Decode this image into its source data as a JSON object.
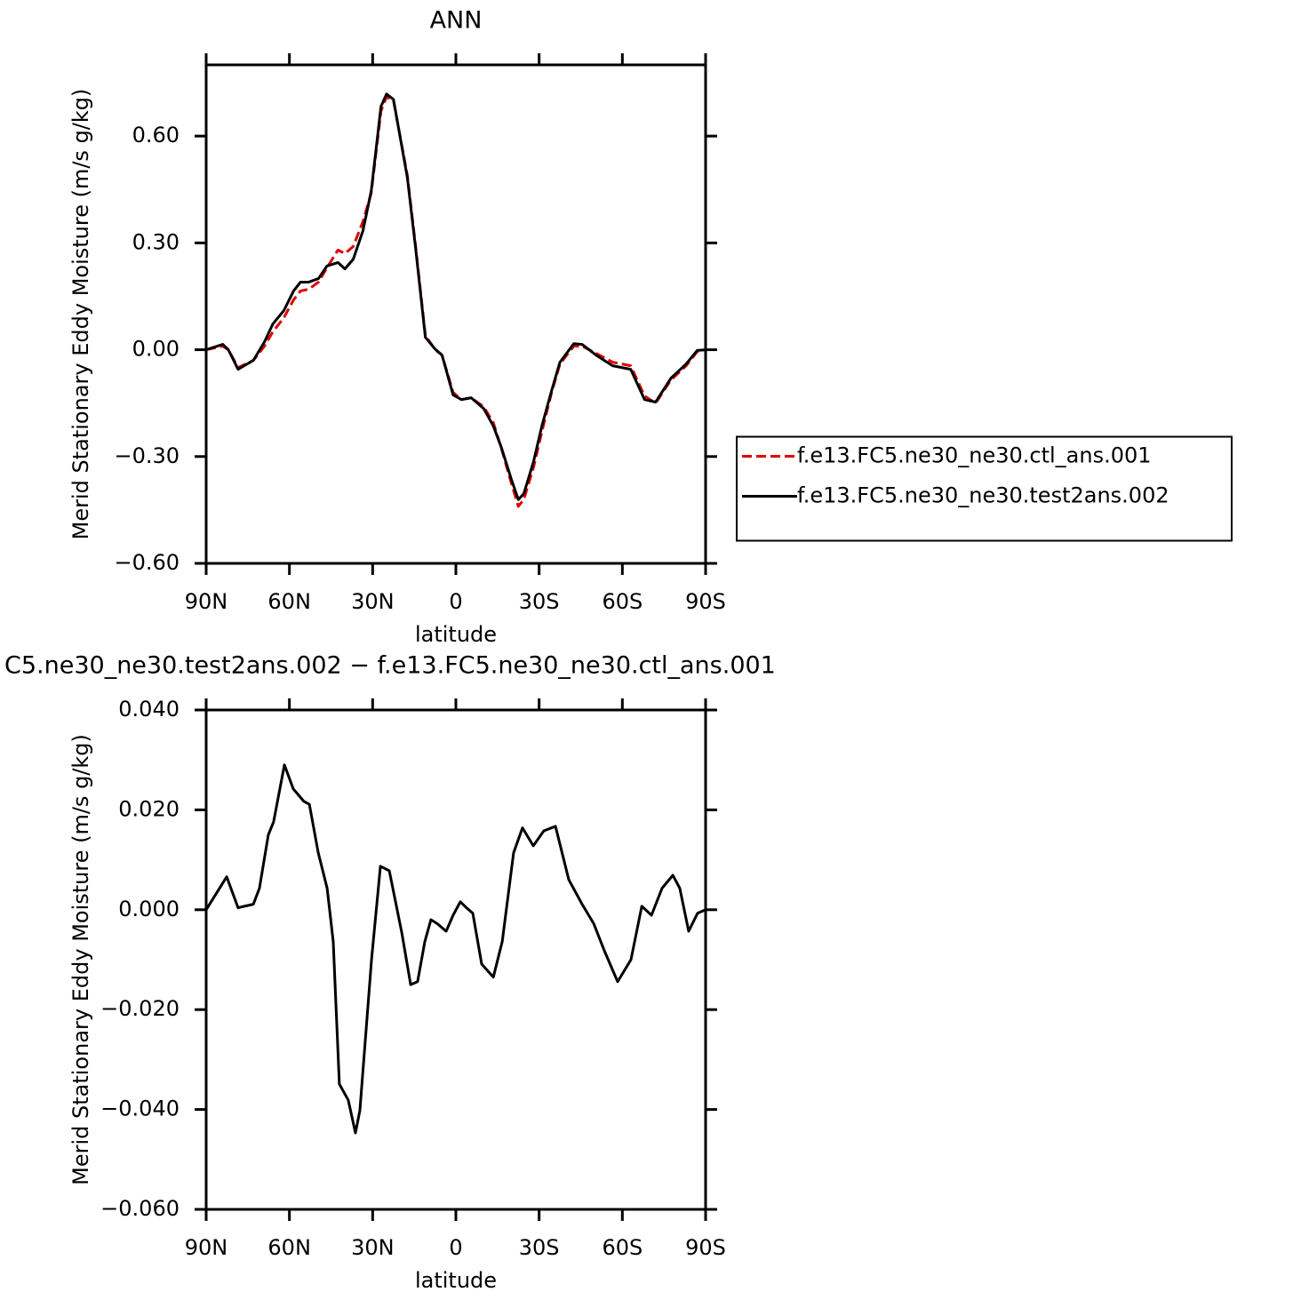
{
  "chart_data": [
    {
      "type": "line",
      "title": "ANN",
      "xlabel": "latitude",
      "ylabel": "Merid Stationary Eddy Moisture (m/s g/kg)",
      "x": [
        90,
        84,
        82,
        78.5,
        73,
        69,
        66,
        62,
        58.5,
        56,
        53,
        49.5,
        46.5,
        42.5,
        40,
        37,
        33.5,
        30.5,
        27,
        25,
        22.5,
        17.5,
        14.5,
        11,
        7.5,
        5,
        1,
        -2,
        -5.5,
        -10,
        -13.5,
        -16.5,
        -20,
        -22.5,
        -24.5,
        -28,
        -31,
        -34.5,
        -37.5,
        -42.5,
        -45.5,
        -50.5,
        -56.5,
        -63,
        -68,
        -72,
        -77.5,
        -83,
        -87,
        -90
      ],
      "series": [
        {
          "name": "f.e13.FC5.ne30_ne30.ctl_ans.001",
          "color": "#e00000",
          "style": "dashed",
          "values": [
            0,
            0.01,
            0,
            -0.05,
            -0.03,
            0.01,
            0.05,
            0.09,
            0.14,
            0.165,
            0.17,
            0.19,
            0.23,
            0.28,
            0.27,
            0.29,
            0.36,
            0.44,
            0.67,
            0.71,
            0.7,
            0.49,
            0.29,
            0.04,
            0.0,
            -0.015,
            -0.12,
            -0.14,
            -0.135,
            -0.16,
            -0.205,
            -0.28,
            -0.375,
            -0.44,
            -0.42,
            -0.33,
            -0.23,
            -0.12,
            -0.04,
            0.01,
            0.01,
            -0.01,
            -0.035,
            -0.045,
            -0.13,
            -0.15,
            -0.085,
            -0.045,
            -0.005,
            0
          ]
        },
        {
          "name": "f.e13.FC5.ne30_ne30.test2ans.002",
          "color": "#000000",
          "style": "solid",
          "values": [
            0,
            0.015,
            0,
            -0.055,
            -0.03,
            0.022,
            0.072,
            0.11,
            0.165,
            0.19,
            0.19,
            0.2,
            0.235,
            0.245,
            0.227,
            0.254,
            0.334,
            0.446,
            0.683,
            0.718,
            0.703,
            0.484,
            0.284,
            0.035,
            0.002,
            -0.015,
            -0.127,
            -0.14,
            -0.135,
            -0.165,
            -0.214,
            -0.277,
            -0.364,
            -0.421,
            -0.404,
            -0.314,
            -0.214,
            -0.115,
            -0.035,
            0.017,
            0.015,
            -0.015,
            -0.045,
            -0.055,
            -0.14,
            -0.147,
            -0.08,
            -0.04,
            -0.002,
            0
          ]
        }
      ],
      "xlim": [
        90,
        -90
      ],
      "xticks": [
        {
          "value": 90,
          "label": "90N"
        },
        {
          "value": 60,
          "label": "60N"
        },
        {
          "value": 30,
          "label": "30N"
        },
        0,
        {
          "value": -30,
          "label": "30S"
        },
        {
          "value": -60,
          "label": "60S"
        },
        {
          "value": -90,
          "label": "90S"
        }
      ],
      "ylim": [
        -0.6,
        0.8
      ],
      "yticks": [
        {
          "value": -0.6,
          "label": "−0.60"
        },
        {
          "value": -0.3,
          "label": "−0.30"
        },
        {
          "value": 0,
          "label": "0.00"
        },
        {
          "value": 0.3,
          "label": "0.30"
        },
        {
          "value": 0.6,
          "label": "0.60"
        }
      ],
      "legend": "right"
    },
    {
      "type": "line",
      "title": "C5.ne30_ne30.test2ans.002 − f.e13.FC5.ne30_ne30.ctl_ans.001",
      "xlabel": "latitude",
      "ylabel": "Merid Stationary Eddy Moisture (m/s g/kg)",
      "x": [
        90,
        82.6,
        78.5,
        76.2,
        73,
        70.8,
        67.6,
        65.7,
        61.8,
        58.6,
        54.8,
        52.8,
        49.6,
        46.4,
        44.2,
        42,
        38.8,
        36.2,
        34.6,
        30.4,
        27.2,
        24,
        19.5,
        16.3,
        13.8,
        11.2,
        9,
        6.7,
        3.5,
        1,
        -1.6,
        -3.8,
        -6.1,
        -9.3,
        -13.5,
        -16.7,
        -20.8,
        -24,
        -27.9,
        -31.7,
        -35.9,
        -40.7,
        -45.5,
        -49.7,
        -53.5,
        -58.3,
        -63.1,
        -67,
        -70.5,
        -74.3,
        -78.2,
        -80.7,
        -83.9,
        -87.1,
        -90
      ],
      "series": [
        {
          "color": "#000000",
          "style": "solid",
          "values": [
            0,
            0.0066,
            0.0004,
            0.0007,
            0.0011,
            0.0043,
            0.015,
            0.0176,
            0.029,
            0.0242,
            0.0217,
            0.0211,
            0.0114,
            0.0043,
            -0.0064,
            -0.0349,
            -0.0381,
            -0.0447,
            -0.0402,
            -0.01,
            0.0087,
            0.0078,
            -0.0046,
            -0.015,
            -0.0144,
            -0.0064,
            -0.002,
            -0.0028,
            -0.0043,
            -0.0011,
            0.0016,
            0.0004,
            -0.0007,
            -0.0109,
            -0.0135,
            -0.0064,
            0.0114,
            0.0164,
            0.0128,
            0.0158,
            0.0167,
            0.006,
            0.0011,
            -0.0028,
            -0.0082,
            -0.0144,
            -0.01,
            0.0007,
            -0.0011,
            0.0043,
            0.0069,
            0.0043,
            -0.0043,
            -0.0007,
            0
          ]
        }
      ],
      "xlim": [
        90,
        -90
      ],
      "xticks": [
        {
          "value": 90,
          "label": "90N"
        },
        {
          "value": 60,
          "label": "60N"
        },
        {
          "value": 30,
          "label": "30N"
        },
        0,
        {
          "value": -30,
          "label": "30S"
        },
        {
          "value": -60,
          "label": "60S"
        },
        {
          "value": -90,
          "label": "90S"
        }
      ],
      "ylim": [
        -0.06,
        0.04
      ],
      "yticks": [
        {
          "value": -0.06,
          "label": "−0.060"
        },
        {
          "value": -0.04,
          "label": "−0.040"
        },
        {
          "value": -0.02,
          "label": "−0.020"
        },
        {
          "value": 0,
          "label": "0.000"
        },
        {
          "value": 0.02,
          "label": "0.020"
        },
        {
          "value": 0.04,
          "label": "0.040"
        }
      ]
    }
  ]
}
